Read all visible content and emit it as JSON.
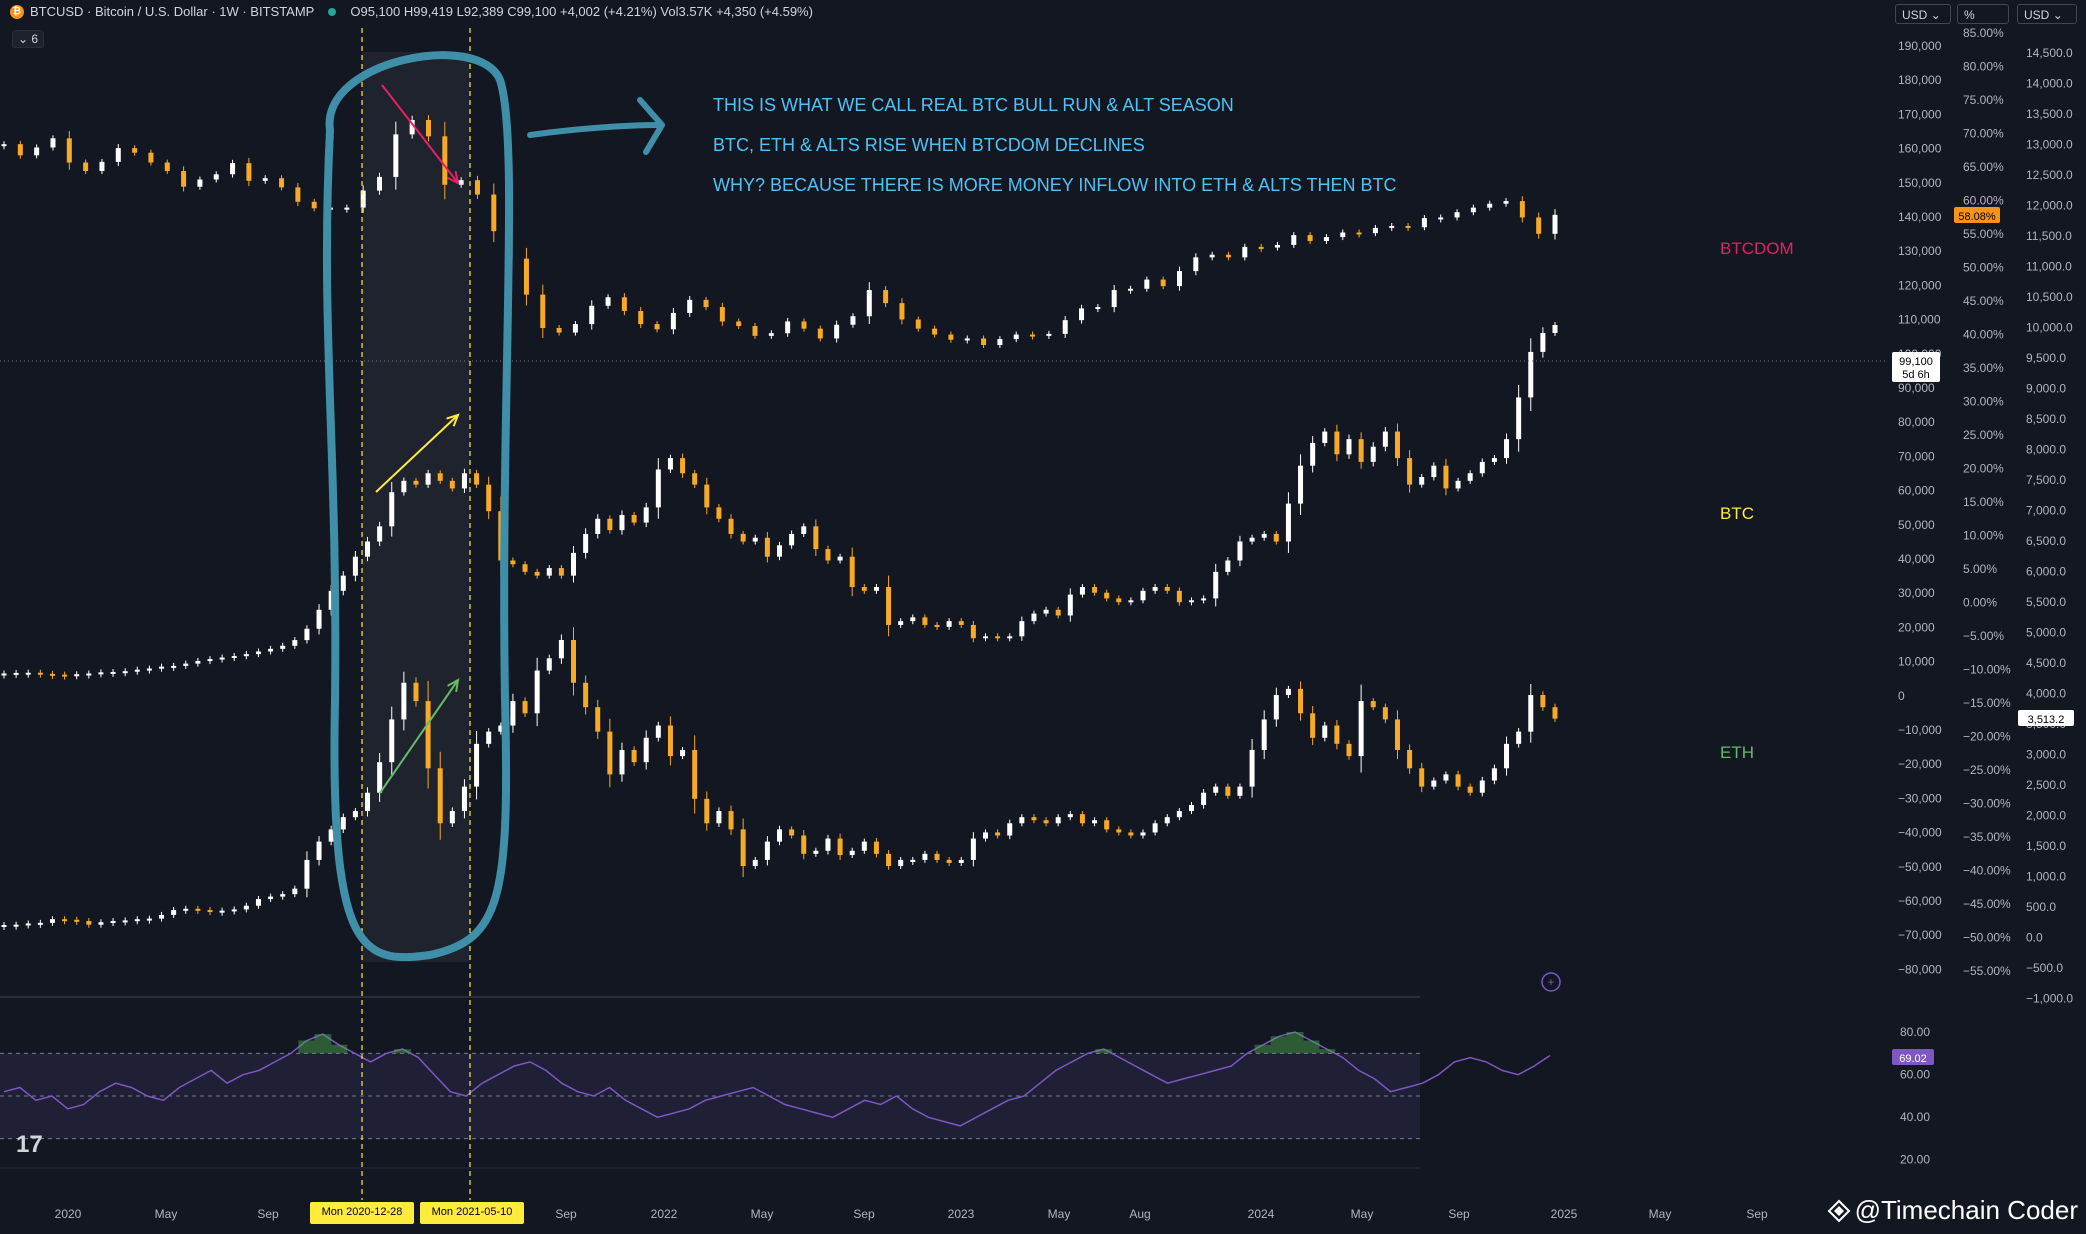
{
  "header": {
    "symbol_text": "BTCUSD · Bitcoin / U.S. Dollar · 1W · BITSTAMP",
    "ohlc_text": "O95,100 H99,419 L92,389 C99,100 +4,002 (+4.21%) Vol3.57K +4,350 (+4.59%)",
    "collapse_text": "⌄ 6"
  },
  "toolbar": {
    "currency_left": "USD",
    "percent": "%",
    "currency_right": "USD"
  },
  "watermark": "@Timechain Coder",
  "colors": {
    "background": "#131722",
    "btc": "#ffeb3b",
    "eth": "#66bb6a",
    "btcdom": "#e91e63",
    "annotation": "#4fc3f7",
    "rsi": "#7e57c2",
    "marker_yellow": "#ffeb3b",
    "candle_up": "#ffffff",
    "candle_down": "#f7a928"
  },
  "chart_data": [
    {
      "type": "candlestick",
      "title": "BTCUSD · Bitcoin / U.S. Dollar · 1W · BITSTAMP",
      "series": [
        {
          "name": "BTCDOM",
          "values": [
            68.9,
            67.2,
            68.4,
            69.8,
            66.1,
            64.8,
            66.2,
            68.3,
            67.6,
            66.1,
            64.8,
            62.4,
            63.5,
            64.3,
            66.0,
            63.3,
            63.7,
            62.3,
            60.1,
            59.1,
            59.2,
            59.2,
            61.8,
            63.9,
            70.4,
            72.6,
            70.1,
            62.7,
            63.4,
            61.2,
            55.6,
            51.4,
            45.9,
            40.8,
            40.1,
            41.4,
            44.2,
            45.5,
            43.4,
            41.4,
            40.6,
            43.1,
            45.1,
            44.0,
            41.8,
            41.1,
            39.6,
            40.0,
            41.8,
            40.7,
            39.2,
            41.3,
            42.6,
            46.6,
            44.6,
            42.1,
            40.7,
            39.8,
            39.0,
            39.2,
            38.2,
            39.1,
            39.8,
            39.6,
            39.9,
            42.0,
            43.8,
            44.0,
            46.6,
            46.8,
            48.2,
            47.2,
            49.5,
            51.6,
            52.0,
            51.6,
            53.2,
            53.1,
            53.5,
            55.0,
            54.1,
            54.7,
            55.4,
            55.3,
            56.1,
            56.4,
            56.2,
            57.6,
            57.7,
            58.5,
            59.2,
            59.8,
            60.2,
            57.7,
            55.2,
            58.1
          ]
        },
        {
          "name": "BTC",
          "values": [
            7200,
            7350,
            7400,
            7100,
            6900,
            6800,
            7000,
            7200,
            7500,
            7600,
            7800,
            8200,
            8500,
            9000,
            9200,
            9800,
            10500,
            11000,
            11400,
            11800,
            12300,
            13000,
            13700,
            14500,
            16000,
            19000,
            24000,
            29000,
            33000,
            38000,
            42000,
            46000,
            55000,
            58000,
            57000,
            60000,
            58000,
            56000,
            60000,
            57000,
            50000,
            37000,
            36000,
            34000,
            33000,
            35000,
            33000,
            39000,
            44000,
            48000,
            45000,
            49000,
            47000,
            51000,
            61000,
            64000,
            60000,
            57000,
            51000,
            48000,
            44000,
            42000,
            43000,
            38000,
            41000,
            44000,
            46000,
            40000,
            37000,
            38000,
            30000,
            29000,
            30000,
            20000,
            21000,
            22000,
            20000,
            19500,
            21000,
            20000,
            16500,
            17000,
            16800,
            17000,
            21000,
            23000,
            24000,
            22500,
            28000,
            30000,
            28500,
            27000,
            26000,
            26500,
            29000,
            30000,
            29000,
            26000,
            26500,
            27000,
            34000,
            37000,
            42000,
            43000,
            44000,
            42000,
            52000,
            62000,
            68000,
            71000,
            65000,
            69000,
            63000,
            67000,
            71000,
            64000,
            57000,
            59000,
            62000,
            56000,
            58000,
            60000,
            63000,
            64000,
            69000,
            80000,
            92000,
            97000,
            99100
          ]
        },
        {
          "name": "ETH",
          "values": [
            135,
            140,
            160,
            170,
            230,
            220,
            200,
            140,
            180,
            200,
            210,
            230,
            240,
            300,
            380,
            400,
            380,
            360,
            370,
            390,
            450,
            560,
            600,
            640,
            730,
            1200,
            1500,
            1700,
            1900,
            2000,
            2300,
            2800,
            3500,
            4100,
            3800,
            2700,
            1800,
            2000,
            2400,
            3100,
            3300,
            3400,
            3800,
            3600,
            4300,
            4500,
            4800,
            4100,
            3700,
            3300,
            2600,
            3000,
            2800,
            3200,
            3400,
            2900,
            3000,
            2200,
            1800,
            2000,
            1700,
            1100,
            1200,
            1500,
            1700,
            1600,
            1300,
            1350,
            1550,
            1280,
            1350,
            1500,
            1300,
            1100,
            1200,
            1200,
            1300,
            1200,
            1150,
            1200,
            1550,
            1650,
            1600,
            1800,
            1900,
            1850,
            1800,
            1900,
            1950,
            1800,
            1850,
            1700,
            1650,
            1600,
            1650,
            1800,
            1900,
            2000,
            2100,
            2300,
            2400,
            2250,
            2400,
            3000,
            3500,
            3900,
            4000,
            3600,
            3200,
            3400,
            3100,
            2900,
            3800,
            3700,
            3500,
            3000,
            2700,
            2400,
            2500,
            2600,
            2400,
            2300,
            2500,
            2700,
            3100,
            3300,
            3900,
            3700,
            3513
          ]
        },
        {
          "name": "RSI",
          "values": [
            52,
            54,
            48,
            50,
            44,
            46,
            52,
            56,
            54,
            50,
            48,
            54,
            58,
            62,
            56,
            60,
            62,
            66,
            70,
            76,
            79,
            74,
            70,
            66,
            70,
            72,
            68,
            60,
            52,
            50,
            56,
            60,
            64,
            66,
            62,
            56,
            52,
            50,
            54,
            48,
            44,
            40,
            42,
            44,
            48,
            50,
            52,
            54,
            50,
            46,
            44,
            42,
            40,
            44,
            48,
            46,
            50,
            44,
            40,
            38,
            36,
            40,
            44,
            48,
            50,
            56,
            62,
            66,
            70,
            72,
            68,
            64,
            60,
            56,
            58,
            60,
            62,
            64,
            70,
            74,
            78,
            80,
            76,
            72,
            68,
            62,
            58,
            52,
            54,
            56,
            60,
            66,
            68,
            66,
            62,
            60,
            64,
            69
          ]
        }
      ],
      "y_axis_left_ticks": [
        "190,000",
        "180,000",
        "170,000",
        "160,000",
        "150,000",
        "140,000",
        "130,000",
        "120,000",
        "110,000",
        "100,000",
        "90,000",
        "80,000",
        "70,000",
        "60,000",
        "50,000",
        "40,000",
        "30,000",
        "20,000",
        "10,000",
        "0",
        "−10,000",
        "−20,000",
        "−30,000",
        "−40,000",
        "−50,000",
        "−60,000",
        "−70,000",
        "−80,000"
      ],
      "y_axis_pct_ticks": [
        "85.00%",
        "80.00%",
        "75.00%",
        "70.00%",
        "65.00%",
        "60.00%",
        "55.00%",
        "50.00%",
        "45.00%",
        "40.00%",
        "35.00%",
        "30.00%",
        "25.00%",
        "20.00%",
        "15.00%",
        "10.00%",
        "5.00%",
        "0.00%",
        "−5.00%",
        "−10.00%",
        "−15.00%",
        "−20.00%",
        "−25.00%",
        "−30.00%",
        "−35.00%",
        "−40.00%",
        "−45.00%",
        "−50.00%",
        "−55.00%"
      ],
      "y_axis_right_ticks": [
        "14,500.0",
        "14,000.0",
        "13,500.0",
        "13,000.0",
        "12,500.0",
        "12,000.0",
        "11,500.0",
        "11,000.0",
        "10,500.0",
        "10,000.0",
        "9,500.0",
        "9,000.0",
        "8,500.0",
        "8,000.0",
        "7,500.0",
        "7,000.0",
        "6,500.0",
        "6,000.0",
        "5,500.0",
        "5,000.0",
        "4,500.0",
        "4,000.0",
        "3,500.0",
        "3,000.0",
        "2,500.0",
        "2,000.0",
        "1,500.0",
        "1,000.0",
        "500.0",
        "0.0",
        "−500.0",
        "−1,000.0"
      ],
      "rsi_ticks": [
        "80.00",
        "60.00",
        "40.00",
        "20.00"
      ],
      "x_ticks": [
        "2020",
        "May",
        "Sep",
        "Mon 2020-12-28",
        "Mon 2021-05-10",
        "Sep",
        "2022",
        "May",
        "Sep",
        "2023",
        "May",
        "Aug",
        "2024",
        "May",
        "Sep",
        "2025",
        "May",
        "Sep"
      ],
      "price_tags": {
        "btcdom": "58.08%",
        "btc_price": "99,100",
        "btc_countdown": "5d 6h",
        "eth": "3,513.2",
        "rsi": "69.02"
      },
      "labels": {
        "btcdom": "BTCDOM",
        "btc": "BTC",
        "eth": "ETH"
      },
      "annotations": [
        "THIS IS WHAT WE CALL REAL BTC BULL RUN & ALT SEASON",
        "BTC, ETH & ALTS RISE WHEN BTCDOM DECLINES",
        "WHY? BECAUSE THERE IS MORE MONEY INFLOW INTO ETH & ALTS THEN BTC"
      ],
      "grid": false,
      "legend": "none"
    }
  ]
}
